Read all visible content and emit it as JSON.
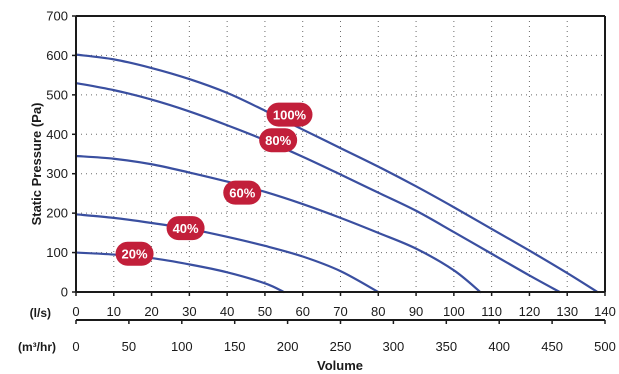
{
  "colors": {
    "curve": "#3a4fa0",
    "badge": "#c21f3a",
    "badge_text": "#ffffff",
    "axis": "#1a1a1a",
    "grid": "#6b6b6b"
  },
  "chart_data": {
    "type": "line",
    "xlabel": "Volume",
    "ylabel": "Static Pressure (Pa)",
    "x_unit_primary": "(l/s)",
    "x_unit_secondary": "(m³/hr)",
    "xlim": [
      0,
      140
    ],
    "ylim": [
      0,
      700
    ],
    "x_ticks": [
      0,
      10,
      20,
      30,
      40,
      50,
      60,
      70,
      80,
      90,
      100,
      110,
      120,
      130,
      140
    ],
    "y_ticks": [
      0,
      100,
      200,
      300,
      400,
      500,
      600,
      700
    ],
    "secondary_ticks": [
      0,
      50,
      100,
      150,
      200,
      250,
      300,
      350,
      400,
      450,
      500
    ],
    "grid": true,
    "series": [
      {
        "name": "100%",
        "points": [
          [
            0,
            602
          ],
          [
            10,
            590
          ],
          [
            20,
            568
          ],
          [
            30,
            540
          ],
          [
            40,
            505
          ],
          [
            50,
            460
          ],
          [
            60,
            412
          ],
          [
            70,
            365
          ],
          [
            80,
            318
          ],
          [
            90,
            268
          ],
          [
            100,
            215
          ],
          [
            110,
            160
          ],
          [
            120,
            105
          ],
          [
            130,
            48
          ],
          [
            138,
            0
          ]
        ]
      },
      {
        "name": "80%",
        "points": [
          [
            0,
            530
          ],
          [
            10,
            512
          ],
          [
            20,
            488
          ],
          [
            30,
            458
          ],
          [
            40,
            423
          ],
          [
            50,
            385
          ],
          [
            60,
            343
          ],
          [
            70,
            298
          ],
          [
            80,
            252
          ],
          [
            90,
            206
          ],
          [
            100,
            152
          ],
          [
            110,
            97
          ],
          [
            120,
            42
          ],
          [
            128,
            0
          ]
        ]
      },
      {
        "name": "60%",
        "points": [
          [
            0,
            345
          ],
          [
            10,
            338
          ],
          [
            20,
            324
          ],
          [
            30,
            303
          ],
          [
            40,
            280
          ],
          [
            50,
            254
          ],
          [
            60,
            223
          ],
          [
            70,
            188
          ],
          [
            80,
            150
          ],
          [
            90,
            110
          ],
          [
            100,
            55
          ],
          [
            107,
            0
          ]
        ]
      },
      {
        "name": "40%",
        "points": [
          [
            0,
            197
          ],
          [
            10,
            188
          ],
          [
            20,
            175
          ],
          [
            30,
            160
          ],
          [
            40,
            140
          ],
          [
            50,
            117
          ],
          [
            60,
            90
          ],
          [
            70,
            53
          ],
          [
            80,
            0
          ]
        ]
      },
      {
        "name": "20%",
        "points": [
          [
            0,
            100
          ],
          [
            10,
            95
          ],
          [
            20,
            86
          ],
          [
            30,
            70
          ],
          [
            40,
            50
          ],
          [
            50,
            22
          ],
          [
            55,
            0
          ]
        ]
      }
    ],
    "labels": [
      {
        "text": "100%",
        "x": 56.5,
        "y": 450
      },
      {
        "text": "80%",
        "x": 53.5,
        "y": 385
      },
      {
        "text": "60%",
        "x": 44,
        "y": 252
      },
      {
        "text": "40%",
        "x": 29,
        "y": 162
      },
      {
        "text": "20%",
        "x": 15.5,
        "y": 97
      }
    ]
  }
}
